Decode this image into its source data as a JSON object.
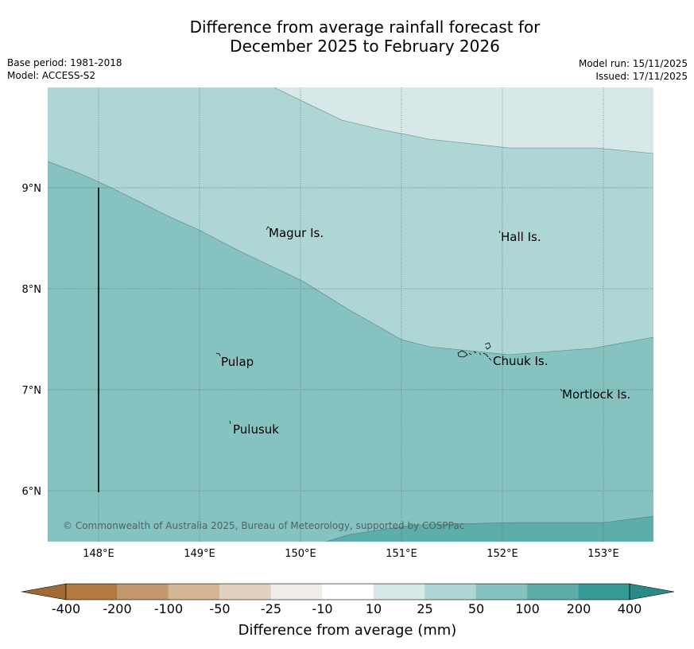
{
  "title": {
    "line1": "Difference from average rainfall forecast for",
    "line2": "December 2025 to February 2026"
  },
  "meta": {
    "base_period": "Base period: 1981-2018",
    "model": "Model: ACCESS-S2",
    "model_run": "Model run: 15/11/2025",
    "issued": "Issued: 17/11/2025"
  },
  "map": {
    "lat_labels": [
      "9°N",
      "8°N",
      "7°N",
      "6°N"
    ],
    "lon_labels": [
      "148°E",
      "149°E",
      "150°E",
      "151°E",
      "152°E",
      "153°E"
    ],
    "places": [
      {
        "name": "Magur Is."
      },
      {
        "name": "Hall Is."
      },
      {
        "name": "Pulap"
      },
      {
        "name": "Chuuk Is."
      },
      {
        "name": "Mortlock Is."
      },
      {
        "name": "Pulusuk"
      }
    ],
    "copyright": "© Commonwealth of Australia 2025, Bureau of Meteorology, supported by COSPPac",
    "colors": {
      "band_10_25": "#d6e9e8",
      "band_25_50": "#aed6d4",
      "band_50_100": "#86c3c0",
      "band_100_200": "#5dadaa"
    }
  },
  "colorbar": {
    "labels": [
      "-400",
      "-200",
      "-100",
      "-50",
      "-25",
      "-10",
      "10",
      "25",
      "50",
      "100",
      "200",
      "400"
    ],
    "colors": [
      "#b27a42",
      "#c4986e",
      "#d3b594",
      "#e3d1c0",
      "#f0ede8",
      "#ffffff",
      "#d6e9e8",
      "#aed6d4",
      "#86c3c0",
      "#5dadaa",
      "#369b97"
    ],
    "low_extend_color": "#a06a35",
    "high_extend_color": "#2a8a86",
    "axis_label": "Difference from average (mm)"
  }
}
